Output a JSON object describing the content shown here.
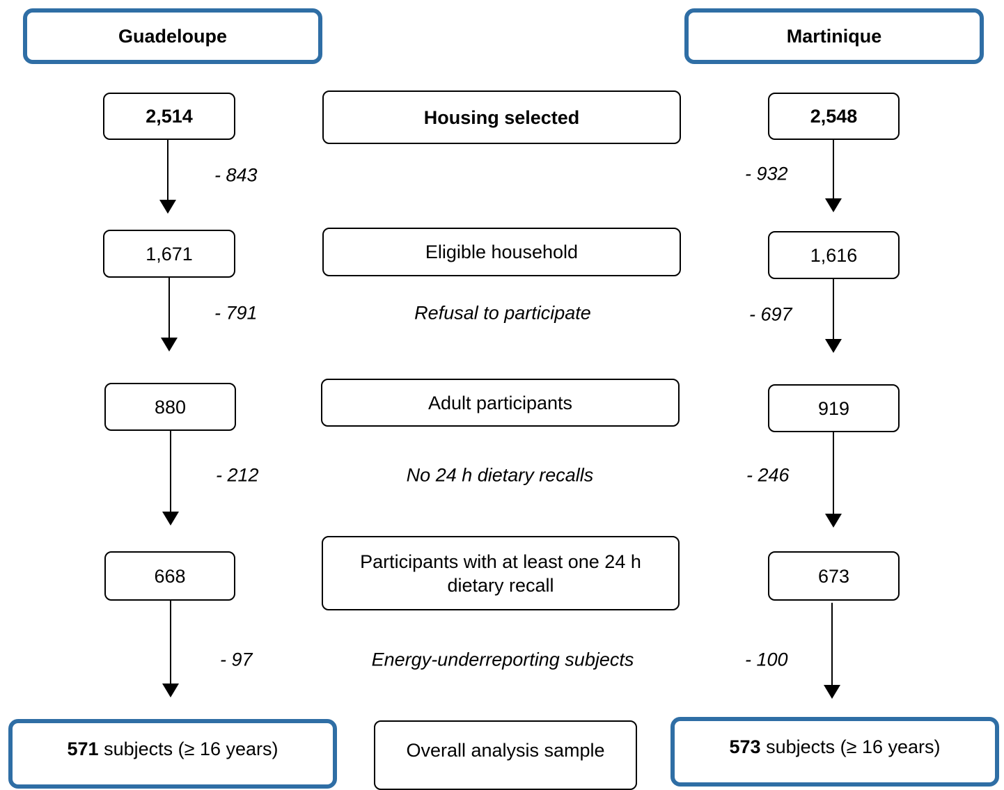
{
  "columns": [
    {
      "title": "Guadeloupe",
      "counts": [
        "2,514",
        "1,671",
        "880",
        "668"
      ],
      "exclusions": [
        "- 843",
        "- 791",
        "- 212",
        "- 97"
      ],
      "final": {
        "count": "571",
        "text": "subjects (≥ 16 years)"
      }
    },
    {
      "title": "Martinique",
      "counts": [
        "2,548",
        "1,616",
        "919",
        "673"
      ],
      "exclusions": [
        "- 932",
        "- 697",
        "- 246",
        "- 100"
      ],
      "final": {
        "count": "573",
        "text": "subjects (≥ 16 years)"
      }
    }
  ],
  "stages": [
    "Housing selected",
    "Eligible household",
    "Adult participants",
    "Participants with at least one 24 h dietary recall"
  ],
  "exclusion_reasons": [
    "Refusal to participate",
    "No 24 h dietary recalls",
    "Energy-underreporting subjects"
  ],
  "final_label": "Overall analysis sample"
}
